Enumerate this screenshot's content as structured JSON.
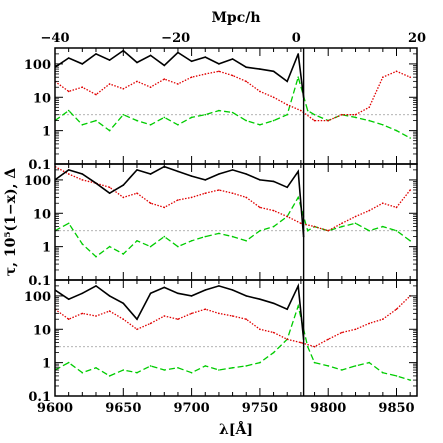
{
  "chart_data": {
    "type": "line",
    "title": "",
    "xlabel": "λ[Å]",
    "ylabel": "τ, 10⁵(1−x), Δ",
    "top_xlabel": "Mpc/h",
    "xlim": [
      9600,
      9865
    ],
    "top_xlim": [
      -40,
      20
    ],
    "ylim": [
      0.1,
      300
    ],
    "yscale": "log",
    "x_ticks": [
      9600,
      9650,
      9700,
      9750,
      9800,
      9850
    ],
    "top_x_ticks": [
      -40,
      -20,
      0,
      20
    ],
    "y_ticks": [
      0.1,
      1,
      10,
      100
    ],
    "y_tick_labels": [
      "0.1",
      "1",
      "10",
      "100"
    ],
    "reference_line_y": 3,
    "vertical_marker_x": 9782,
    "series_styles": [
      {
        "key": "tau",
        "color": "#000000",
        "style": "solid"
      },
      {
        "key": "neutral_fraction",
        "color": "#e00000",
        "style": "dotted"
      },
      {
        "key": "overdensity",
        "color": "#00cc00",
        "style": "dashed"
      }
    ],
    "panels": [
      {
        "tau": [
          [
            9600,
            80
          ],
          [
            9610,
            150
          ],
          [
            9620,
            100
          ],
          [
            9630,
            200
          ],
          [
            9640,
            130
          ],
          [
            9650,
            250
          ],
          [
            9660,
            110
          ],
          [
            9670,
            180
          ],
          [
            9680,
            90
          ],
          [
            9690,
            220
          ],
          [
            9700,
            120
          ],
          [
            9710,
            160
          ],
          [
            9720,
            100
          ],
          [
            9730,
            140
          ],
          [
            9740,
            80
          ],
          [
            9750,
            70
          ],
          [
            9760,
            60
          ],
          [
            9770,
            30
          ],
          [
            9778,
            200
          ],
          [
            9782,
            10
          ]
        ],
        "neutral_fraction": [
          [
            9600,
            30
          ],
          [
            9610,
            15
          ],
          [
            9620,
            20
          ],
          [
            9630,
            12
          ],
          [
            9640,
            25
          ],
          [
            9650,
            18
          ],
          [
            9660,
            30
          ],
          [
            9670,
            20
          ],
          [
            9680,
            35
          ],
          [
            9690,
            25
          ],
          [
            9700,
            40
          ],
          [
            9710,
            50
          ],
          [
            9720,
            60
          ],
          [
            9730,
            45
          ],
          [
            9740,
            30
          ],
          [
            9750,
            15
          ],
          [
            9760,
            10
          ],
          [
            9770,
            6
          ],
          [
            9780,
            4
          ],
          [
            9790,
            2
          ],
          [
            9800,
            2
          ],
          [
            9810,
            3
          ],
          [
            9820,
            3
          ],
          [
            9830,
            5
          ],
          [
            9840,
            40
          ],
          [
            9850,
            60
          ],
          [
            9860,
            40
          ]
        ],
        "overdensity": [
          [
            9600,
            2
          ],
          [
            9610,
            4
          ],
          [
            9620,
            1.5
          ],
          [
            9630,
            2
          ],
          [
            9640,
            1
          ],
          [
            9650,
            3
          ],
          [
            9660,
            2
          ],
          [
            9670,
            1.5
          ],
          [
            9680,
            2.5
          ],
          [
            9690,
            1.5
          ],
          [
            9700,
            2.5
          ],
          [
            9710,
            3
          ],
          [
            9720,
            4
          ],
          [
            9730,
            3.5
          ],
          [
            9740,
            2
          ],
          [
            9750,
            1.5
          ],
          [
            9760,
            2
          ],
          [
            9770,
            3
          ],
          [
            9778,
            40
          ],
          [
            9785,
            4
          ],
          [
            9790,
            3
          ],
          [
            9800,
            2
          ],
          [
            9810,
            3
          ],
          [
            9820,
            2.5
          ],
          [
            9830,
            2
          ],
          [
            9840,
            1.5
          ],
          [
            9850,
            1
          ],
          [
            9860,
            0.6
          ]
        ]
      },
      {
        "tau": [
          [
            9600,
            100
          ],
          [
            9610,
            200
          ],
          [
            9620,
            150
          ],
          [
            9630,
            80
          ],
          [
            9640,
            40
          ],
          [
            9650,
            70
          ],
          [
            9660,
            200
          ],
          [
            9670,
            150
          ],
          [
            9680,
            250
          ],
          [
            9690,
            180
          ],
          [
            9700,
            130
          ],
          [
            9710,
            100
          ],
          [
            9720,
            150
          ],
          [
            9730,
            200
          ],
          [
            9740,
            150
          ],
          [
            9750,
            100
          ],
          [
            9760,
            90
          ],
          [
            9770,
            60
          ],
          [
            9778,
            180
          ],
          [
            9782,
            2
          ]
        ],
        "neutral_fraction": [
          [
            9600,
            250
          ],
          [
            9610,
            150
          ],
          [
            9620,
            100
          ],
          [
            9630,
            80
          ],
          [
            9640,
            60
          ],
          [
            9650,
            30
          ],
          [
            9660,
            40
          ],
          [
            9670,
            20
          ],
          [
            9680,
            15
          ],
          [
            9690,
            25
          ],
          [
            9700,
            30
          ],
          [
            9710,
            40
          ],
          [
            9720,
            50
          ],
          [
            9730,
            40
          ],
          [
            9740,
            30
          ],
          [
            9750,
            15
          ],
          [
            9760,
            12
          ],
          [
            9770,
            8
          ],
          [
            9780,
            5
          ],
          [
            9790,
            4
          ],
          [
            9800,
            3
          ],
          [
            9810,
            5
          ],
          [
            9820,
            8
          ],
          [
            9830,
            12
          ],
          [
            9840,
            20
          ],
          [
            9850,
            15
          ],
          [
            9860,
            50
          ]
        ],
        "overdensity": [
          [
            9600,
            3
          ],
          [
            9610,
            5
          ],
          [
            9620,
            1.2
          ],
          [
            9630,
            0.5
          ],
          [
            9640,
            1
          ],
          [
            9650,
            0.6
          ],
          [
            9660,
            1.5
          ],
          [
            9670,
            1
          ],
          [
            9680,
            2
          ],
          [
            9690,
            1
          ],
          [
            9700,
            1.5
          ],
          [
            9710,
            2
          ],
          [
            9720,
            2.5
          ],
          [
            9730,
            2
          ],
          [
            9740,
            1.5
          ],
          [
            9750,
            3
          ],
          [
            9760,
            4
          ],
          [
            9770,
            8
          ],
          [
            9778,
            30
          ],
          [
            9785,
            3
          ],
          [
            9790,
            4
          ],
          [
            9800,
            3
          ],
          [
            9810,
            4
          ],
          [
            9820,
            5
          ],
          [
            9830,
            3
          ],
          [
            9840,
            4
          ],
          [
            9850,
            3
          ],
          [
            9860,
            1.5
          ]
        ]
      },
      {
        "tau": [
          [
            9600,
            150
          ],
          [
            9610,
            80
          ],
          [
            9620,
            120
          ],
          [
            9630,
            200
          ],
          [
            9640,
            100
          ],
          [
            9650,
            60
          ],
          [
            9660,
            20
          ],
          [
            9670,
            120
          ],
          [
            9680,
            180
          ],
          [
            9690,
            120
          ],
          [
            9700,
            100
          ],
          [
            9710,
            150
          ],
          [
            9720,
            200
          ],
          [
            9730,
            150
          ],
          [
            9740,
            100
          ],
          [
            9750,
            80
          ],
          [
            9760,
            60
          ],
          [
            9770,
            40
          ],
          [
            9778,
            200
          ],
          [
            9782,
            5
          ]
        ],
        "neutral_fraction": [
          [
            9600,
            40
          ],
          [
            9610,
            20
          ],
          [
            9620,
            30
          ],
          [
            9630,
            25
          ],
          [
            9640,
            35
          ],
          [
            9650,
            20
          ],
          [
            9660,
            10
          ],
          [
            9670,
            15
          ],
          [
            9680,
            25
          ],
          [
            9690,
            20
          ],
          [
            9700,
            30
          ],
          [
            9710,
            40
          ],
          [
            9720,
            30
          ],
          [
            9730,
            25
          ],
          [
            9740,
            20
          ],
          [
            9750,
            10
          ],
          [
            9760,
            8
          ],
          [
            9770,
            5
          ],
          [
            9780,
            4
          ],
          [
            9790,
            3
          ],
          [
            9800,
            5
          ],
          [
            9810,
            8
          ],
          [
            9820,
            10
          ],
          [
            9830,
            15
          ],
          [
            9840,
            20
          ],
          [
            9850,
            40
          ],
          [
            9860,
            100
          ]
        ],
        "overdensity": [
          [
            9600,
            0.6
          ],
          [
            9610,
            1
          ],
          [
            9620,
            0.5
          ],
          [
            9630,
            0.7
          ],
          [
            9640,
            0.4
          ],
          [
            9650,
            0.6
          ],
          [
            9660,
            0.5
          ],
          [
            9670,
            0.8
          ],
          [
            9680,
            0.6
          ],
          [
            9690,
            0.7
          ],
          [
            9700,
            0.5
          ],
          [
            9710,
            0.8
          ],
          [
            9720,
            0.6
          ],
          [
            9730,
            0.7
          ],
          [
            9740,
            0.8
          ],
          [
            9750,
            1
          ],
          [
            9760,
            2
          ],
          [
            9770,
            5
          ],
          [
            9778,
            50
          ],
          [
            9785,
            3
          ],
          [
            9790,
            1
          ],
          [
            9800,
            0.8
          ],
          [
            9810,
            0.6
          ],
          [
            9820,
            0.8
          ],
          [
            9830,
            1
          ],
          [
            9840,
            0.5
          ],
          [
            9850,
            0.4
          ],
          [
            9860,
            0.3
          ]
        ]
      }
    ]
  }
}
